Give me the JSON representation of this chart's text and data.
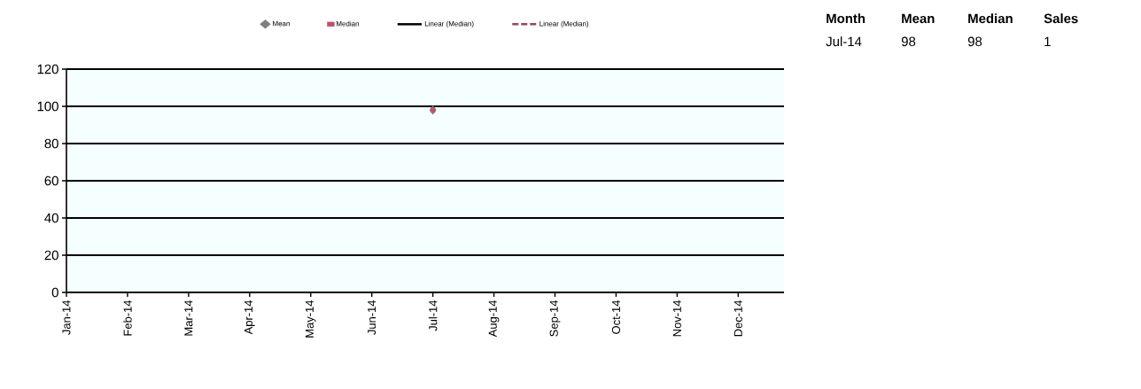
{
  "chart_data": {
    "type": "scatter",
    "categories": [
      "Jan-14",
      "Feb-14",
      "Mar-14",
      "Apr-14",
      "May-14",
      "Jun-14",
      "Jul-14",
      "Aug-14",
      "Sep-14",
      "Oct-14",
      "Nov-14",
      "Dec-14"
    ],
    "ylim": [
      0,
      120
    ],
    "yticks": [
      0,
      20,
      40,
      60,
      80,
      100,
      120
    ],
    "grid": "y",
    "legend": "top",
    "series": [
      {
        "name": "Mean",
        "color": "#7f7f7f",
        "marker": "diamond",
        "values": [
          null,
          null,
          null,
          null,
          null,
          null,
          98,
          null,
          null,
          null,
          null,
          null
        ]
      },
      {
        "name": "Median",
        "color": "#c0506e",
        "marker": "square",
        "values": [
          null,
          null,
          null,
          null,
          null,
          null,
          98,
          null,
          null,
          null,
          null,
          null
        ]
      },
      {
        "name": "Linear (Median)",
        "type": "line",
        "color": "#000000",
        "line_style": "solid",
        "values": [
          null,
          null,
          null,
          null,
          null,
          null,
          null,
          null,
          null,
          null,
          null,
          null
        ]
      },
      {
        "name": "Linear (Median)",
        "type": "line",
        "color": "#a0405a",
        "line_style": "dashed",
        "values": [
          null,
          null,
          null,
          null,
          null,
          null,
          null,
          null,
          null,
          null,
          null,
          null
        ]
      }
    ],
    "annotations": [
      "Month",
      "Mean",
      "Median",
      "Sales",
      "Jul-14",
      "98",
      "98",
      "1"
    ]
  }
}
